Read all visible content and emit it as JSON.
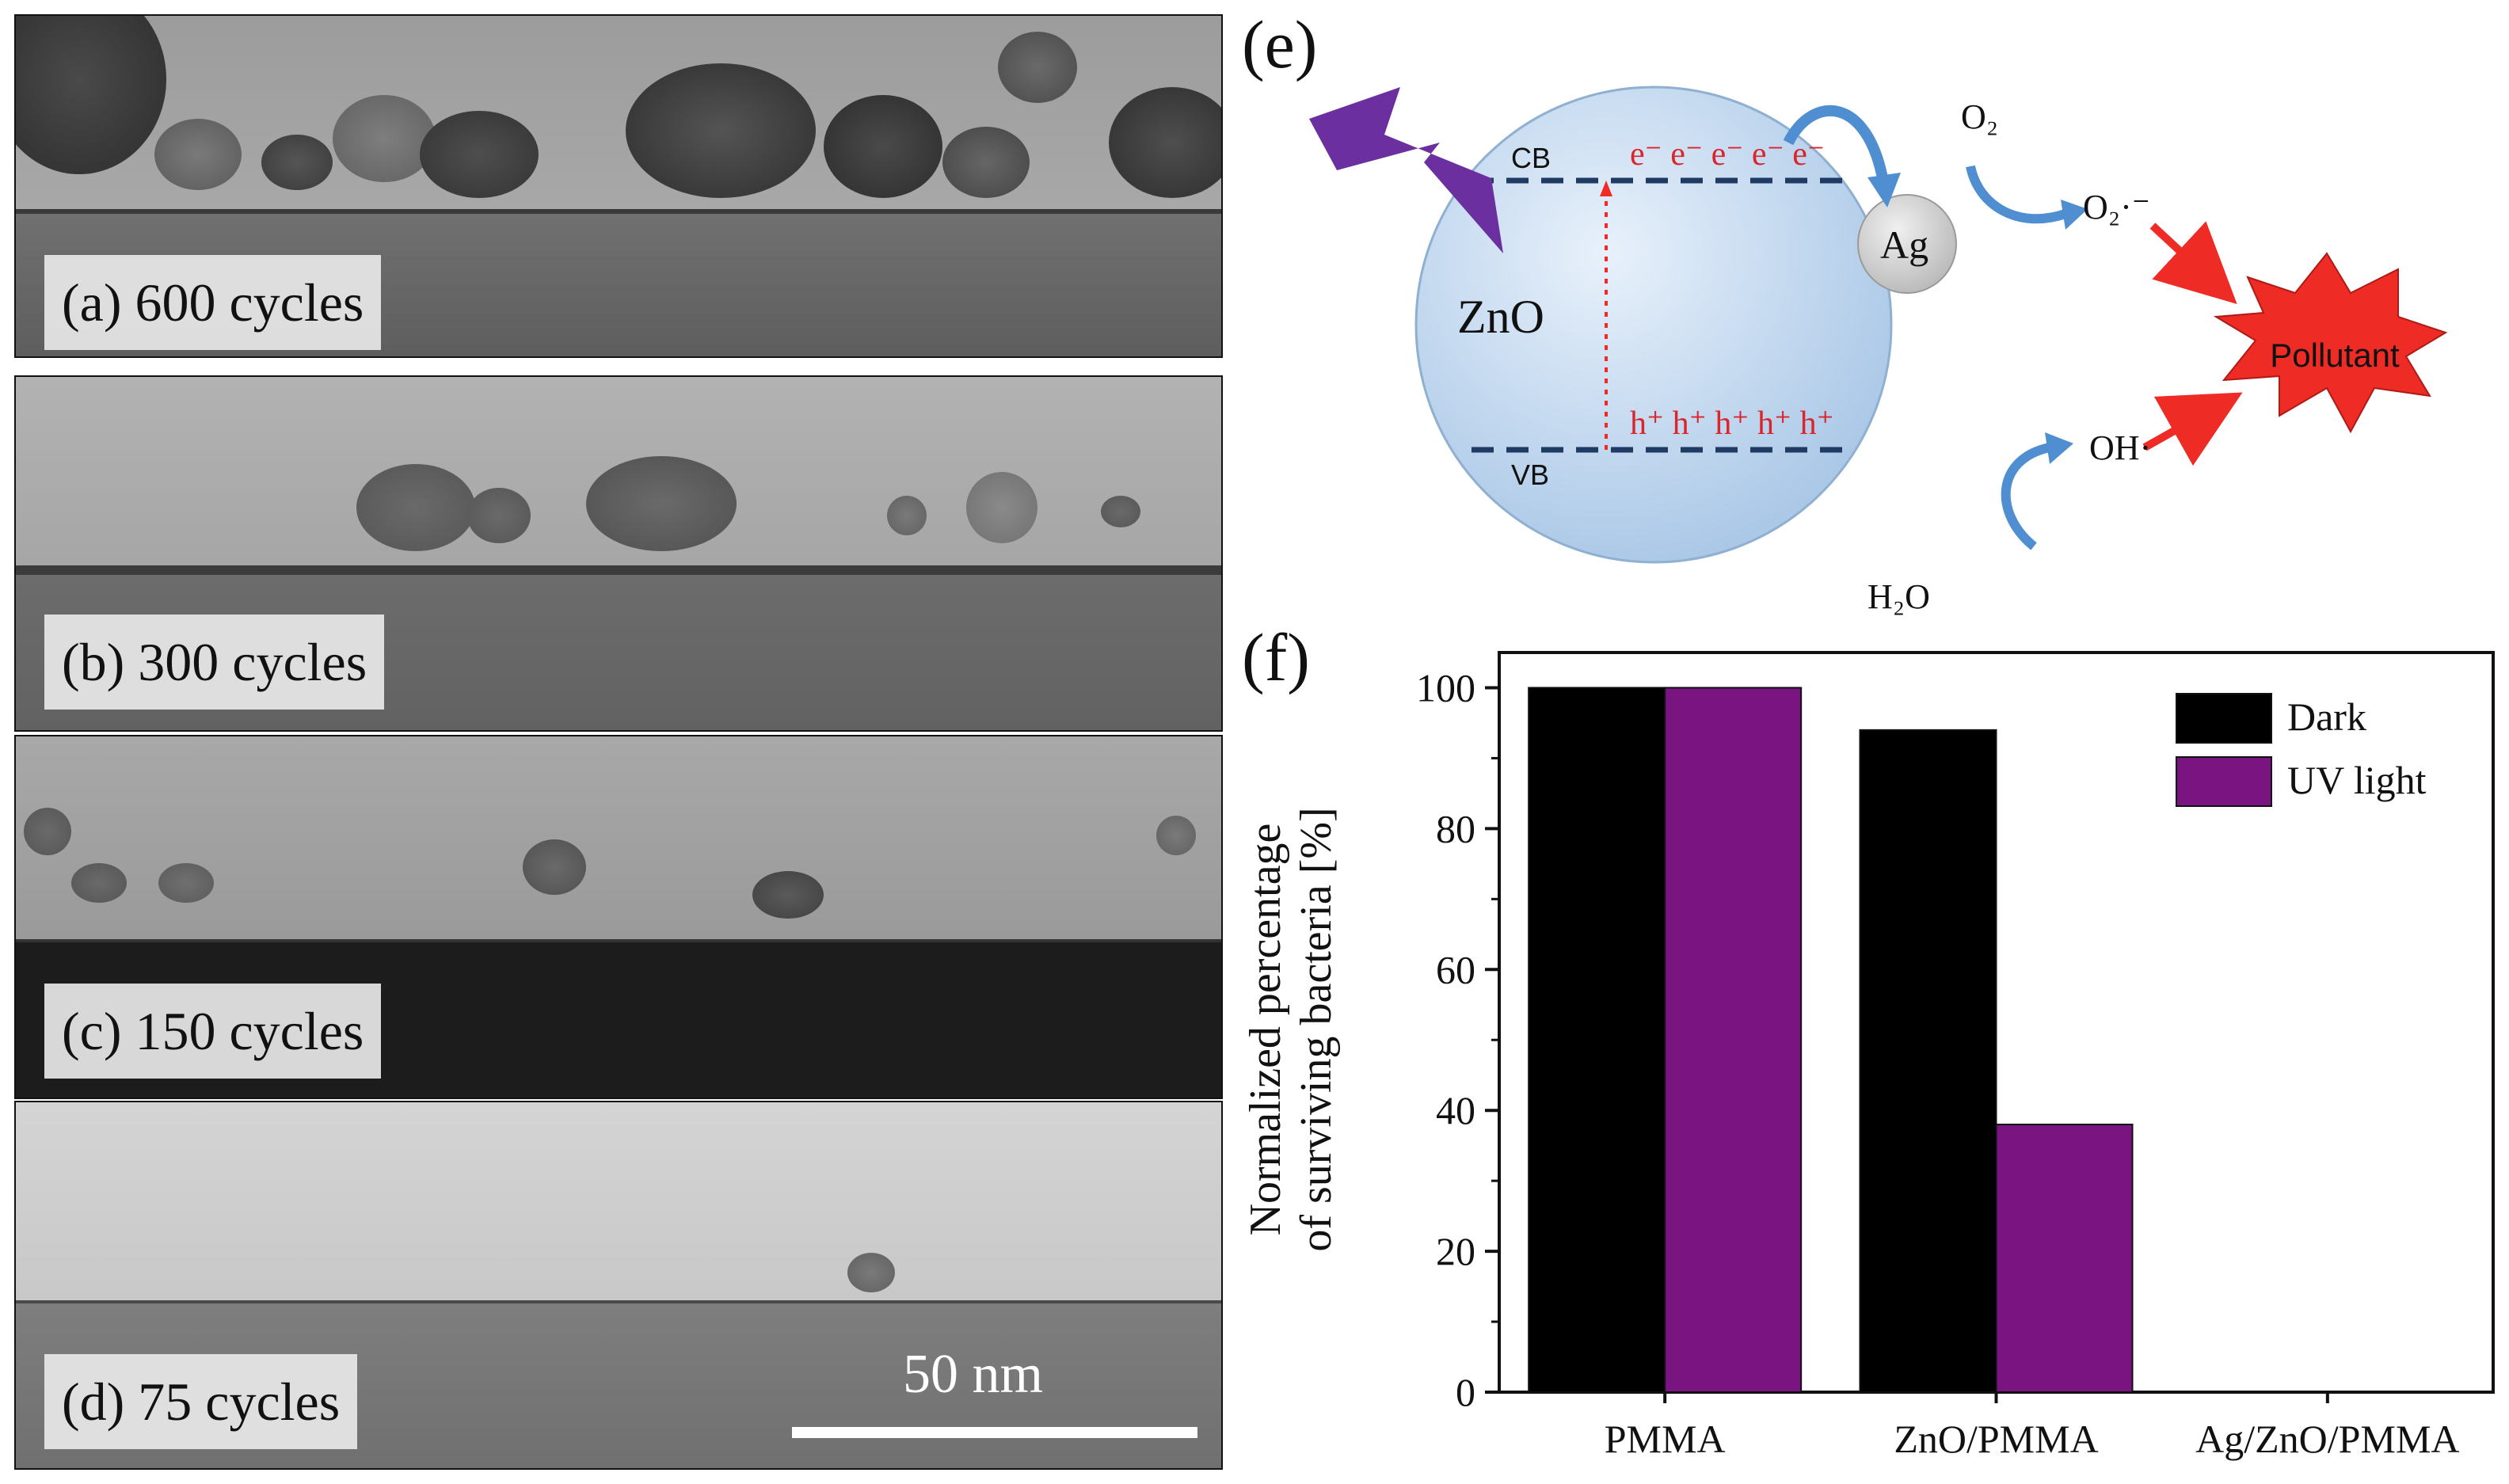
{
  "tem_panels": {
    "a": "(a) 600 cycles",
    "b": "(b) 300 cycles",
    "c": "(c) 150 cycles",
    "d": "(d) 75 cycles",
    "scale_bar": "50 nm"
  },
  "scheme": {
    "panel_letter": "(e)",
    "cb": "CB",
    "vb": "VB",
    "electrons": "e⁻ e⁻ e⁻ e⁻ e⁻",
    "holes": "h⁺ h⁺ h⁺ h⁺ h⁺",
    "semiconductor": "ZnO",
    "metal": "Ag",
    "o2": "O₂",
    "superoxide": "O₂·⁻",
    "hydroxyl": "OH·",
    "water": "H₂O",
    "pollutant": "Pollutant"
  },
  "colors": {
    "dark": "#000000",
    "uv": "#7a1480",
    "electron_text": "#d9262d",
    "band_line": "#1f3a63",
    "arrow_blue": "#4f8ed0",
    "pollutant_red": "#ee2b24",
    "lightning": "#6b2fa0"
  },
  "chart_data": {
    "panel_letter": "(f)",
    "type": "bar",
    "categories": [
      "PMMA",
      "ZnO/PMMA",
      "Ag/ZnO/PMMA"
    ],
    "series": [
      {
        "name": "Dark",
        "values": [
          100,
          94,
          0
        ]
      },
      {
        "name": "UV light",
        "values": [
          100,
          38,
          0
        ]
      }
    ],
    "ylabel_line1": "Normalized percentage",
    "ylabel_line2": "of surviving bacteria [%]",
    "ylim": [
      0,
      105
    ],
    "yticks": [
      0,
      20,
      40,
      60,
      80,
      100
    ],
    "legend_position": "top-right",
    "grid": false
  }
}
